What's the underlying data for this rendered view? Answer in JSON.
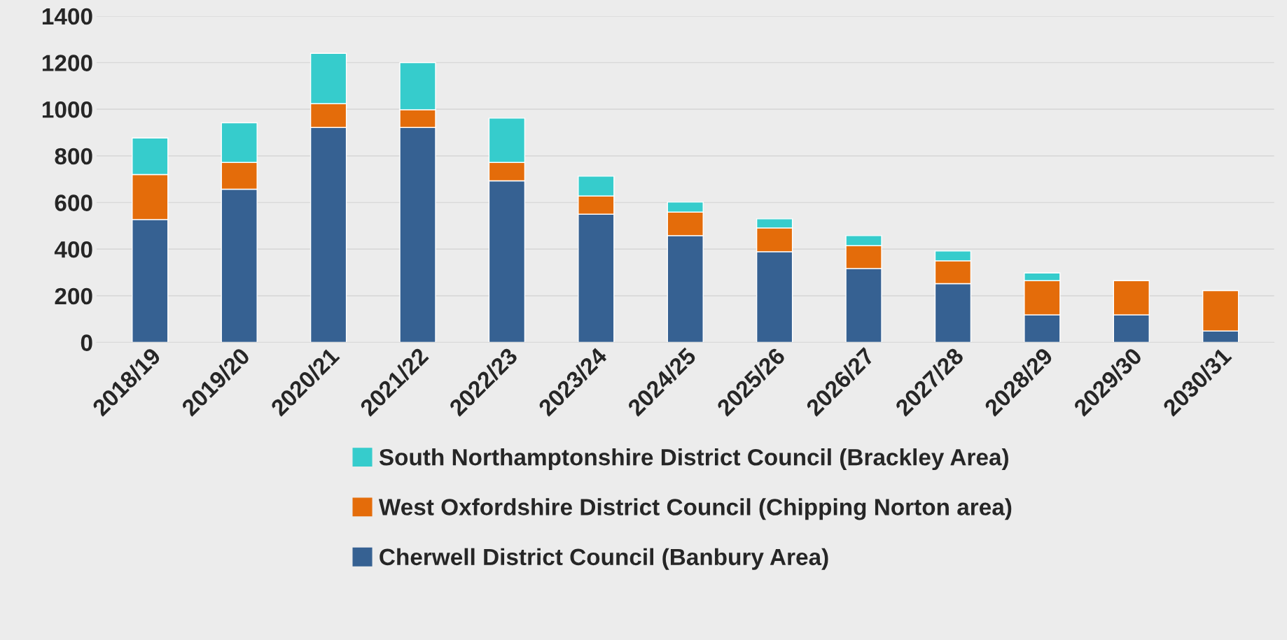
{
  "chart_data": {
    "type": "bar",
    "stacked": true,
    "categories": [
      "2018/19",
      "2019/20",
      "2020/21",
      "2021/22",
      "2022/23",
      "2023/24",
      "2024/25",
      "2025/26",
      "2026/27",
      "2027/28",
      "2028/29",
      "2029/30",
      "2030/31"
    ],
    "series": [
      {
        "name": "Cherwell District Council (Banbury Area)",
        "color": "#366192",
        "values": [
          527,
          657,
          922,
          922,
          693,
          550,
          458,
          389,
          317,
          252,
          118,
          118,
          49
        ]
      },
      {
        "name": "West Oxfordshire District Council (Chipping Norton area)",
        "color": "#e46c0a",
        "values": [
          193,
          115,
          102,
          76,
          79,
          78,
          101,
          102,
          98,
          98,
          147,
          147,
          173
        ]
      },
      {
        "name": "South Northamptonshire District Council (Brackley Area)",
        "color": "#36cccc",
        "values": [
          157,
          170,
          216,
          202,
          190,
          85,
          43,
          39,
          43,
          42,
          33,
          null,
          null
        ]
      }
    ],
    "ylim": [
      0,
      1400
    ],
    "yticks": [
      0,
      200,
      400,
      600,
      800,
      1000,
      1200,
      1400
    ],
    "grid": "y",
    "legend": "bottom"
  }
}
